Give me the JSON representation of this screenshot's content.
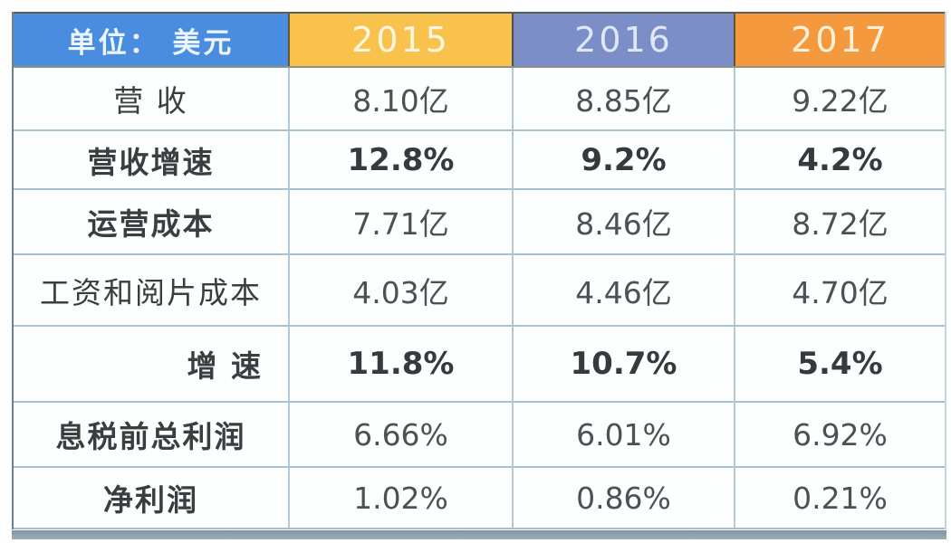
{
  "chart_data": {
    "type": "table",
    "title": "单位： 美元",
    "columns": [
      "2015",
      "2016",
      "2017"
    ],
    "rows": [
      {
        "label": "营 收",
        "values": [
          "8.10亿",
          "8.85亿",
          "9.22亿"
        ]
      },
      {
        "label": "营收增速",
        "values": [
          "12.8%",
          "9.2%",
          "4.2%"
        ]
      },
      {
        "label": "运营成本",
        "values": [
          "7.71亿",
          "8.46亿",
          "8.72亿"
        ]
      },
      {
        "label": "工资和阅片成本",
        "values": [
          "4.03亿",
          "4.46亿",
          "4.70亿"
        ]
      },
      {
        "label": "增 速",
        "values": [
          "11.8%",
          "10.7%",
          "5.4%"
        ]
      },
      {
        "label": "息税前总利润",
        "values": [
          "6.66%",
          "6.01%",
          "6.92%"
        ]
      },
      {
        "label": "净利润",
        "values": [
          "1.02%",
          "0.86%",
          "0.21%"
        ]
      }
    ],
    "layout": {
      "header_colors": {
        "unit_cell": "#4a8dde",
        "year_2015": "#f9c24d",
        "year_2016": "#7b8ec8",
        "year_2017": "#f5993f"
      },
      "grid_line_color": "#aec6d3",
      "bottom_strip_color": "#8ba0af"
    }
  }
}
